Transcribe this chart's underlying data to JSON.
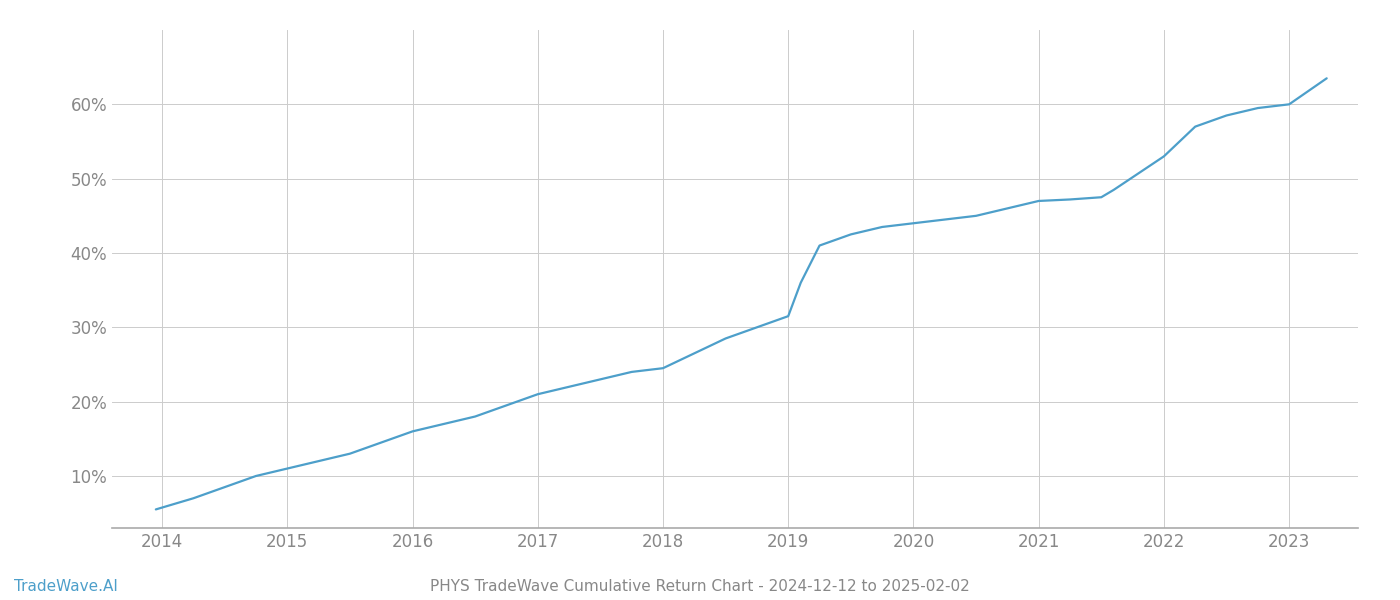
{
  "title": "PHYS TradeWave Cumulative Return Chart - 2024-12-12 to 2025-02-02",
  "watermark": "TradeWave.AI",
  "line_color": "#4d9fca",
  "background_color": "#ffffff",
  "grid_color": "#cccccc",
  "x_years": [
    2014,
    2015,
    2016,
    2017,
    2018,
    2019,
    2020,
    2021,
    2022,
    2023
  ],
  "x_data": [
    2013.95,
    2014.25,
    2014.5,
    2014.75,
    2015.0,
    2015.25,
    2015.5,
    2015.75,
    2016.0,
    2016.25,
    2016.5,
    2016.75,
    2017.0,
    2017.25,
    2017.5,
    2017.75,
    2018.0,
    2018.25,
    2018.5,
    2018.75,
    2019.0,
    2019.1,
    2019.25,
    2019.5,
    2019.75,
    2020.0,
    2020.25,
    2020.5,
    2020.75,
    2021.0,
    2021.25,
    2021.5,
    2021.6,
    2022.0,
    2022.25,
    2022.5,
    2022.75,
    2023.0,
    2023.3
  ],
  "y_data": [
    5.5,
    7.0,
    8.5,
    10.0,
    11.0,
    12.0,
    13.0,
    14.5,
    16.0,
    17.0,
    18.0,
    19.5,
    21.0,
    22.0,
    23.0,
    24.0,
    24.5,
    26.5,
    28.5,
    30.0,
    31.5,
    36.0,
    41.0,
    42.5,
    43.5,
    44.0,
    44.5,
    45.0,
    46.0,
    47.0,
    47.2,
    47.5,
    48.5,
    53.0,
    57.0,
    58.5,
    59.5,
    60.0,
    63.5
  ],
  "ylim": [
    3,
    70
  ],
  "yticks": [
    10,
    20,
    30,
    40,
    50,
    60
  ],
  "xlim": [
    2013.6,
    2023.55
  ],
  "tick_color": "#888888",
  "title_fontsize": 11,
  "watermark_fontsize": 11,
  "axis_label_fontsize": 12,
  "line_width": 1.6,
  "spine_color": "#aaaaaa"
}
